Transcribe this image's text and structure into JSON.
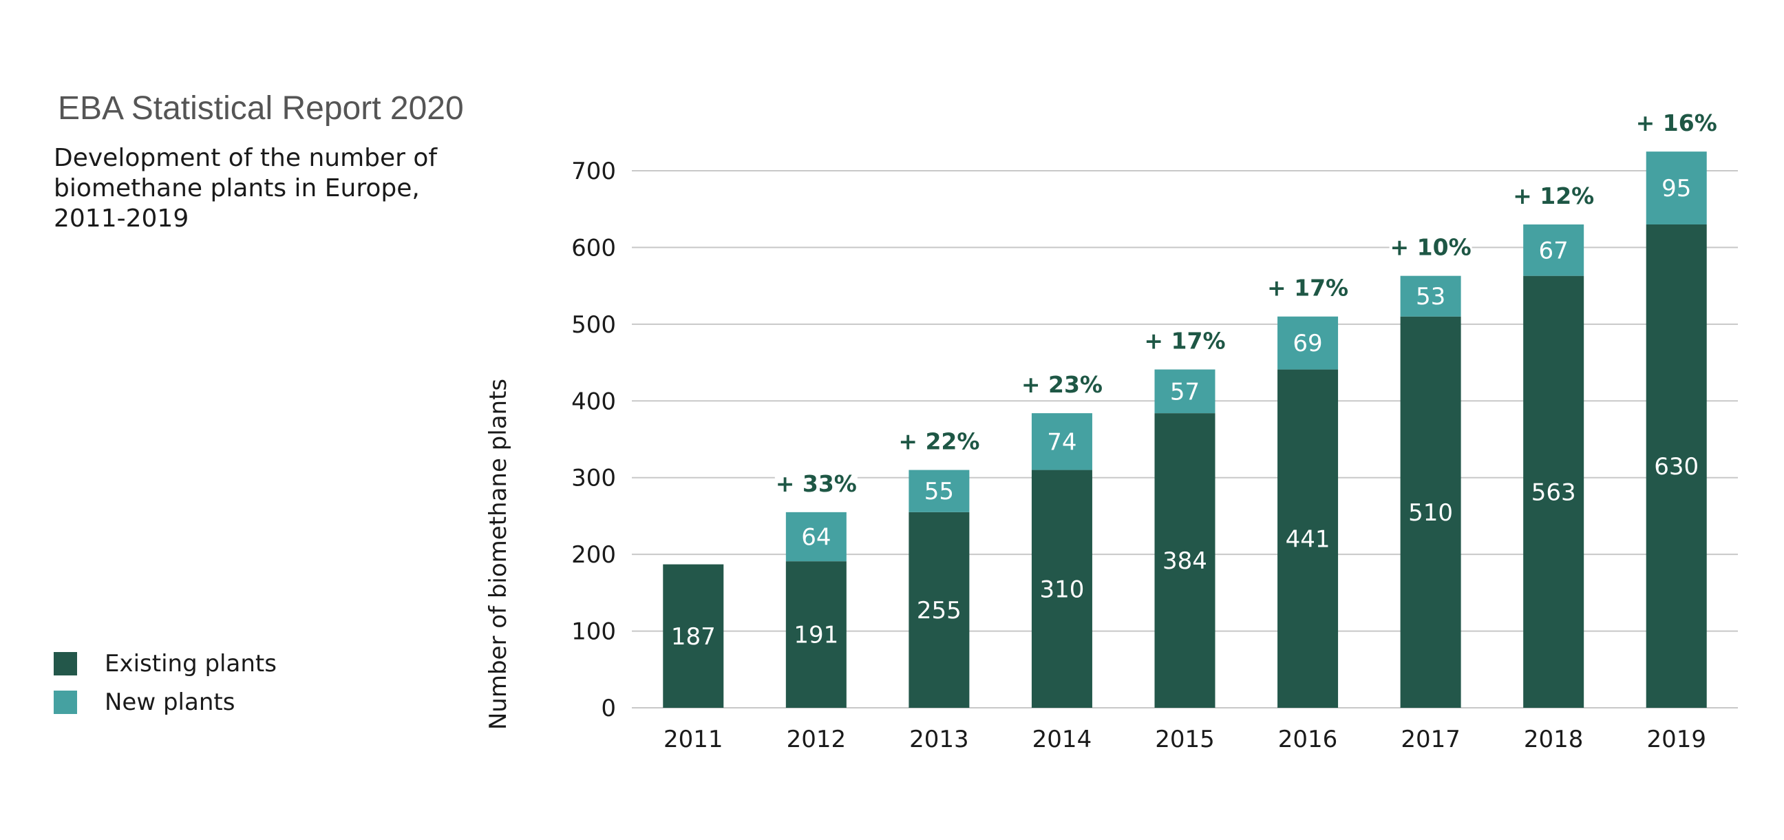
{
  "report_title": "EBA Statistical Report 2020",
  "colors": {
    "existing": "#23574a",
    "new": "#45a1a1",
    "grid": "#c8c8c8",
    "pct": "#1e5745"
  },
  "chart_data": {
    "type": "bar",
    "stacked": true,
    "title": "Development of the number of biomethane plants in Europe, 2011-2019",
    "ylabel": "Number of biomethane plants",
    "xlabel": "",
    "ylim": [
      0,
      700
    ],
    "yticks": [
      0,
      100,
      200,
      300,
      400,
      500,
      600,
      700
    ],
    "grid": true,
    "legend_position": "bottom-left",
    "categories": [
      "2011",
      "2012",
      "2013",
      "2014",
      "2015",
      "2016",
      "2017",
      "2018",
      "2019"
    ],
    "series": [
      {
        "name": "Existing plants",
        "values": [
          187,
          191,
          255,
          310,
          384,
          441,
          510,
          563,
          630
        ]
      },
      {
        "name": "New plants",
        "values": [
          0,
          64,
          55,
          74,
          57,
          69,
          53,
          67,
          95
        ]
      }
    ],
    "growth_labels": [
      "",
      "+ 33%",
      "+ 22%",
      "+ 23%",
      "+ 17%",
      "+ 17%",
      "+ 10%",
      "+ 12%",
      "+ 16%"
    ]
  }
}
